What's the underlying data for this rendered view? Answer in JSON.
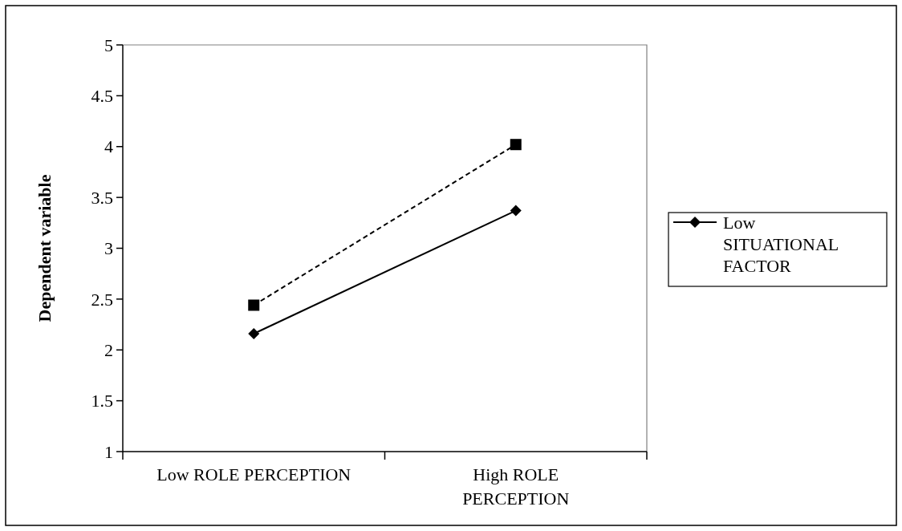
{
  "chart_data": {
    "type": "line",
    "ylabel": "Dependent variable",
    "categories": [
      "Low ROLE PERCEPTION",
      "High ROLE PERCEPTION"
    ],
    "series": [
      {
        "name": "Low SITUATIONAL FACTOR",
        "color": "#000000",
        "values": [
          2.16,
          3.37
        ],
        "marker": "diamond",
        "line_style": "solid"
      },
      {
        "color": "#000000",
        "values": [
          2.44,
          4.02
        ],
        "marker": "square",
        "line_style": "dashed"
      }
    ],
    "ylim": [
      1,
      5
    ],
    "yticks": [
      1,
      1.5,
      2,
      2.5,
      3,
      3.5,
      4,
      4.5,
      5
    ],
    "grid": false,
    "legend": "right"
  }
}
